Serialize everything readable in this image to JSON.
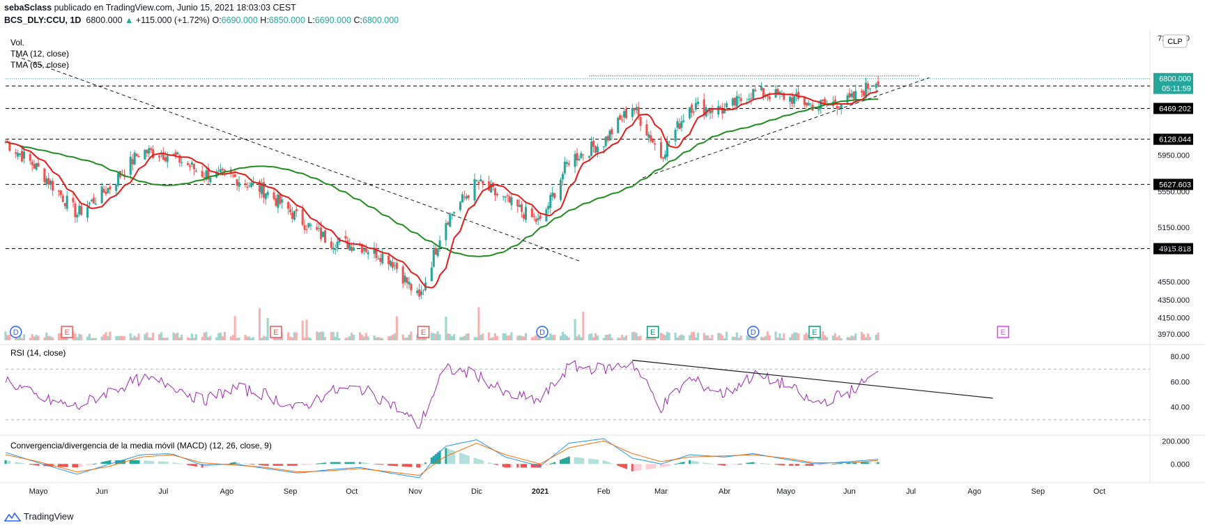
{
  "header": {
    "author": "sebaSclass",
    "published": "publicado en TradingView.com, Junio 15, 2021 18:03:03 CEST",
    "symbol": "BCS_DLY:CCU, 1D",
    "last": "6800.000",
    "arrow": "▲",
    "change": "+115.000 (+1.72%)",
    "o_label": "O:",
    "o": "6690.000",
    "h_label": "H:",
    "h": "6850.000",
    "l_label": "L:",
    "l": "6690.000",
    "c_label": "C:",
    "c": "6800.000"
  },
  "legend": {
    "vol": "Vol.",
    "tma12": "TMA (12, close)",
    "tma65": "TMA (65, close)",
    "rsi": "RSI (14, close)",
    "macd": "Convergencia/divergencia de la media móvil (MACD) (12, 26, close, 9)"
  },
  "currency": "CLP",
  "footer": {
    "brand": "TradingView",
    "logo": "tradingview-logo-icon"
  },
  "colors": {
    "up": "#26a69a",
    "down": "#ef5350",
    "tma12": "#e61919",
    "tma65": "#1e8c1e",
    "rsi": "#9c27b0",
    "macd": "#2196f3",
    "signal": "#ff6d00",
    "price_badge": "#26a69a",
    "level_badge": "#000000"
  },
  "price_axis": {
    "ticks": [
      "7250.000",
      "5950.000",
      "5550.000",
      "5150.000",
      "4950.000",
      "4550.000",
      "4350.000",
      "4150.000",
      "3970.000"
    ],
    "current_price": "6800.000",
    "countdown": "05:11:59",
    "levels": [
      "6718.259",
      "6469.202",
      "6128.044",
      "5627.603",
      "4915.818"
    ]
  },
  "rsi_axis": {
    "ticks": [
      "80.00",
      "60.00",
      "40.00"
    ]
  },
  "macd_axis": {
    "ticks": [
      "200.000",
      "0.000"
    ]
  },
  "time_axis": {
    "labels": [
      "Mayo",
      "Jun",
      "Jul",
      "Ago",
      "Sep",
      "Oct",
      "Nov",
      "Dic",
      "2021",
      "Feb",
      "Mar",
      "Abr",
      "Mayo",
      "Jun",
      "Jul",
      "Ago",
      "Sep",
      "Oct"
    ]
  },
  "events": [
    {
      "type": "D",
      "color": "#2962ff"
    },
    {
      "type": "E",
      "color": "#ef5350"
    },
    {
      "type": "E",
      "color": "#ef5350"
    },
    {
      "type": "E",
      "color": "#ef5350"
    },
    {
      "type": "D",
      "color": "#2962ff"
    },
    {
      "type": "E",
      "color": "#089981"
    },
    {
      "type": "D",
      "color": "#2962ff"
    },
    {
      "type": "E",
      "color": "#089981"
    },
    {
      "type": "E",
      "color": "#e040fb"
    }
  ],
  "chart_data": [
    {
      "type": "candlestick",
      "title": "BCS_DLY:CCU, 1D",
      "ylim": [
        3900,
        7300
      ],
      "x_range": [
        "2020-04",
        "2021-10"
      ],
      "overlays": [
        "TMA (12, close)",
        "TMA (65, close)"
      ],
      "horizontal_levels": [
        6718.259,
        6469.202,
        6128.044,
        5627.603,
        4915.818
      ],
      "price_path": {
        "x": [
          "2020-04-15",
          "2020-05-01",
          "2020-05-20",
          "2020-06-05",
          "2020-06-20",
          "2020-07-05",
          "2020-07-20",
          "2020-08-05",
          "2020-08-20",
          "2020-09-05",
          "2020-09-20",
          "2020-10-05",
          "2020-10-20",
          "2020-11-03",
          "2020-11-15",
          "2020-12-01",
          "2020-12-15",
          "2021-01-01",
          "2021-01-15",
          "2021-02-01",
          "2021-02-15",
          "2021-03-01",
          "2021-03-15",
          "2021-04-01",
          "2021-04-15",
          "2021-05-01",
          "2021-05-15",
          "2021-06-01",
          "2021-06-15"
        ],
        "close": [
          6100,
          5800,
          5300,
          5600,
          6000,
          5950,
          5750,
          5700,
          5550,
          5250,
          5000,
          4950,
          4800,
          4350,
          5200,
          5650,
          5450,
          5200,
          5900,
          6100,
          6500,
          5950,
          6500,
          6450,
          6650,
          6600,
          6500,
          6550,
          6800
        ]
      }
    },
    {
      "type": "line",
      "title": "RSI (14, close)",
      "ylim": [
        20,
        85
      ],
      "series": [
        {
          "name": "RSI (14, close)",
          "x": [
            "2020-04-15",
            "2020-05-01",
            "2020-05-20",
            "2020-06-05",
            "2020-06-20",
            "2020-07-05",
            "2020-07-20",
            "2020-08-05",
            "2020-08-20",
            "2020-09-05",
            "2020-09-20",
            "2020-10-05",
            "2020-10-20",
            "2020-11-03",
            "2020-11-15",
            "2020-12-01",
            "2020-12-15",
            "2021-01-01",
            "2021-01-15",
            "2021-02-01",
            "2021-02-15",
            "2021-03-01",
            "2021-03-15",
            "2021-04-01",
            "2021-04-15",
            "2021-05-01",
            "2021-05-15",
            "2021-06-01",
            "2021-06-15"
          ],
          "values": [
            62,
            47,
            40,
            53,
            62,
            58,
            45,
            55,
            50,
            38,
            52,
            55,
            43,
            25,
            70,
            66,
            50,
            45,
            72,
            70,
            75,
            40,
            62,
            50,
            65,
            58,
            42,
            52,
            66
          ]
        }
      ]
    },
    {
      "type": "bar",
      "title": "Convergencia/divergencia de la media móvil (MACD) (12, 26, close, 9)",
      "ylim": [
        -150,
        250
      ],
      "series": [
        {
          "name": "MACD",
          "values": [
            100,
            10,
            -90,
            0,
            80,
            90,
            -10,
            0,
            -40,
            -80,
            -50,
            -30,
            -80,
            -120,
            150,
            210,
            60,
            -20,
            180,
            220,
            50,
            0,
            80,
            60,
            90,
            40,
            0,
            20,
            40
          ]
        },
        {
          "name": "Signal",
          "values": [
            80,
            20,
            -70,
            -20,
            60,
            80,
            10,
            -10,
            -30,
            -70,
            -60,
            -40,
            -70,
            -100,
            60,
            180,
            80,
            0,
            140,
            200,
            90,
            20,
            60,
            70,
            80,
            50,
            10,
            10,
            30
          ]
        }
      ]
    }
  ]
}
